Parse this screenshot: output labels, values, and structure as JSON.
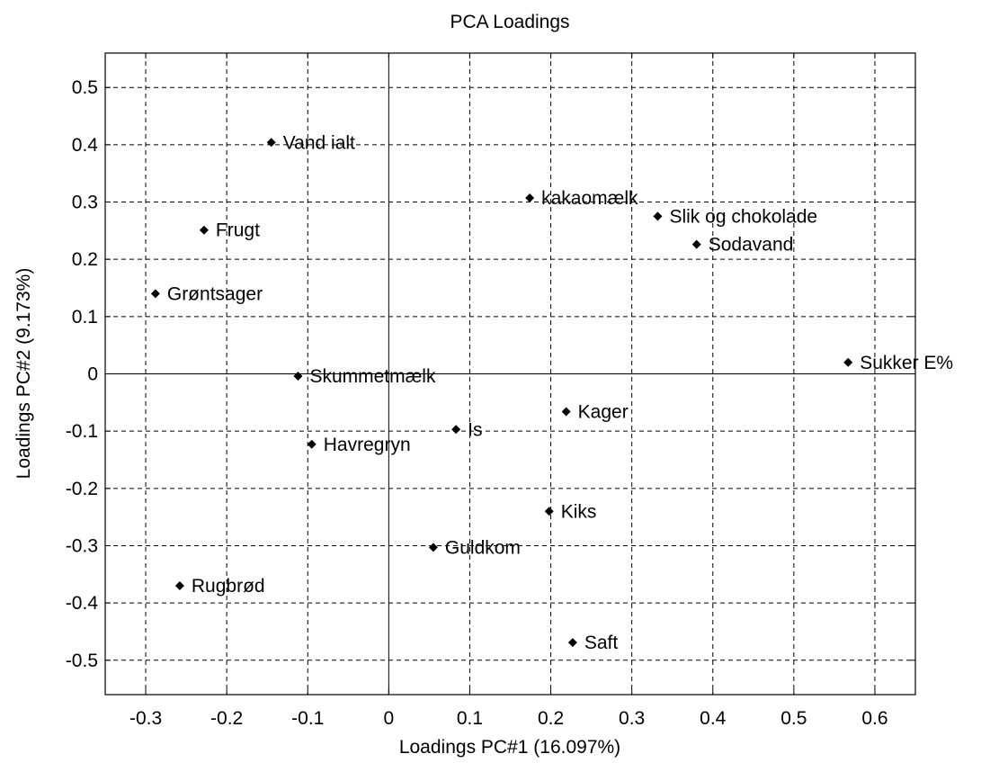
{
  "chart_data": {
    "type": "scatter",
    "title": "PCA Loadings",
    "xlabel": "Loadings PC#1 (16.097%)",
    "ylabel": "Loadings PC#2 (9.173%)",
    "xlim": [
      -0.35,
      0.65
    ],
    "ylim": [
      -0.56,
      0.56
    ],
    "xticks": [
      -0.3,
      -0.2,
      -0.1,
      0,
      0.1,
      0.2,
      0.3,
      0.4,
      0.5,
      0.6
    ],
    "xtick_labels": [
      "-0.3",
      "-0.2",
      "-0.1",
      "0",
      "0.1",
      "0.2",
      "0.3",
      "0.4",
      "0.5",
      "0.6"
    ],
    "yticks": [
      0.5,
      0.4,
      0.3,
      0.2,
      0.1,
      0,
      -0.1,
      -0.2,
      -0.3,
      -0.4,
      -0.5
    ],
    "ytick_labels": [
      "0.5",
      "0.4",
      "0.3",
      "0.2",
      "0.1",
      "0",
      "-0.1",
      "-0.2",
      "-0.3",
      "-0.4",
      "-0.5"
    ],
    "grid": true,
    "zero_lines": true,
    "marker_color": "#000000",
    "points": [
      {
        "label": "Vand ialt",
        "x": -0.145,
        "y": 0.404
      },
      {
        "label": "Frugt",
        "x": -0.228,
        "y": 0.251
      },
      {
        "label": "Grøntsager",
        "x": -0.288,
        "y": 0.14
      },
      {
        "label": "kakaomælk",
        "x": 0.174,
        "y": 0.307
      },
      {
        "label": "Slik og chokolade",
        "x": 0.332,
        "y": 0.275
      },
      {
        "label": "Sodavand",
        "x": 0.38,
        "y": 0.226
      },
      {
        "label": "Sukker E%",
        "x": 0.567,
        "y": 0.02
      },
      {
        "label": "Skummetmælk",
        "x": -0.112,
        "y": -0.004
      },
      {
        "label": "Kager",
        "x": 0.219,
        "y": -0.066
      },
      {
        "label": "Is",
        "x": 0.083,
        "y": -0.097
      },
      {
        "label": "Havregryn",
        "x": -0.095,
        "y": -0.123
      },
      {
        "label": "Kiks",
        "x": 0.198,
        "y": -0.24
      },
      {
        "label": "Guldkom",
        "x": 0.055,
        "y": -0.303
      },
      {
        "label": "Rugbrød",
        "x": -0.258,
        "y": -0.37
      },
      {
        "label": "Saft",
        "x": 0.227,
        "y": -0.469
      }
    ]
  }
}
